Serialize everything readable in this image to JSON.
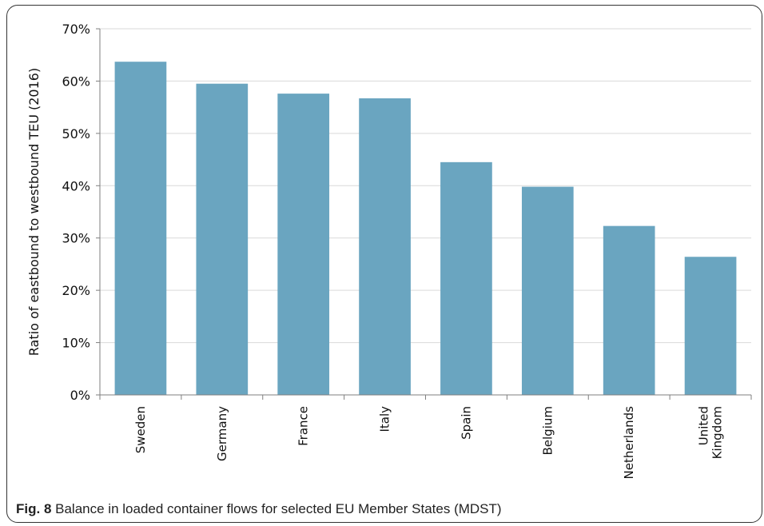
{
  "figure": {
    "caption_label": "Fig. 8",
    "caption_text": "Balance in loaded container flows for selected EU Member States (MDST)"
  },
  "colors": {
    "bar": "#6aa5c0",
    "grid": "#d9d9d9",
    "axis": "#7f7f7f"
  },
  "chart_data": {
    "type": "bar",
    "title": "",
    "xlabel": "",
    "ylabel": "Ratio of eastbound to westbound TEU (2016)",
    "categories": [
      "Sweden",
      "Germany",
      "France",
      "Italy",
      "Spain",
      "Belgium",
      "Netherlands",
      "United Kingdom"
    ],
    "category_lines": [
      [
        "Sweden"
      ],
      [
        "Germany"
      ],
      [
        "France"
      ],
      [
        "Italy"
      ],
      [
        "Spain"
      ],
      [
        "Belgium"
      ],
      [
        "Netherlands"
      ],
      [
        "United",
        "Kingdom"
      ]
    ],
    "values": [
      63.7,
      59.5,
      57.6,
      56.7,
      44.5,
      39.8,
      32.3,
      26.4
    ],
    "ylim": [
      0,
      70
    ],
    "yticks": [
      0,
      10,
      20,
      30,
      40,
      50,
      60,
      70
    ],
    "ytick_labels": [
      "0%",
      "10%",
      "20%",
      "30%",
      "40%",
      "50%",
      "60%",
      "70%"
    ],
    "grid": true,
    "legend": "none"
  }
}
